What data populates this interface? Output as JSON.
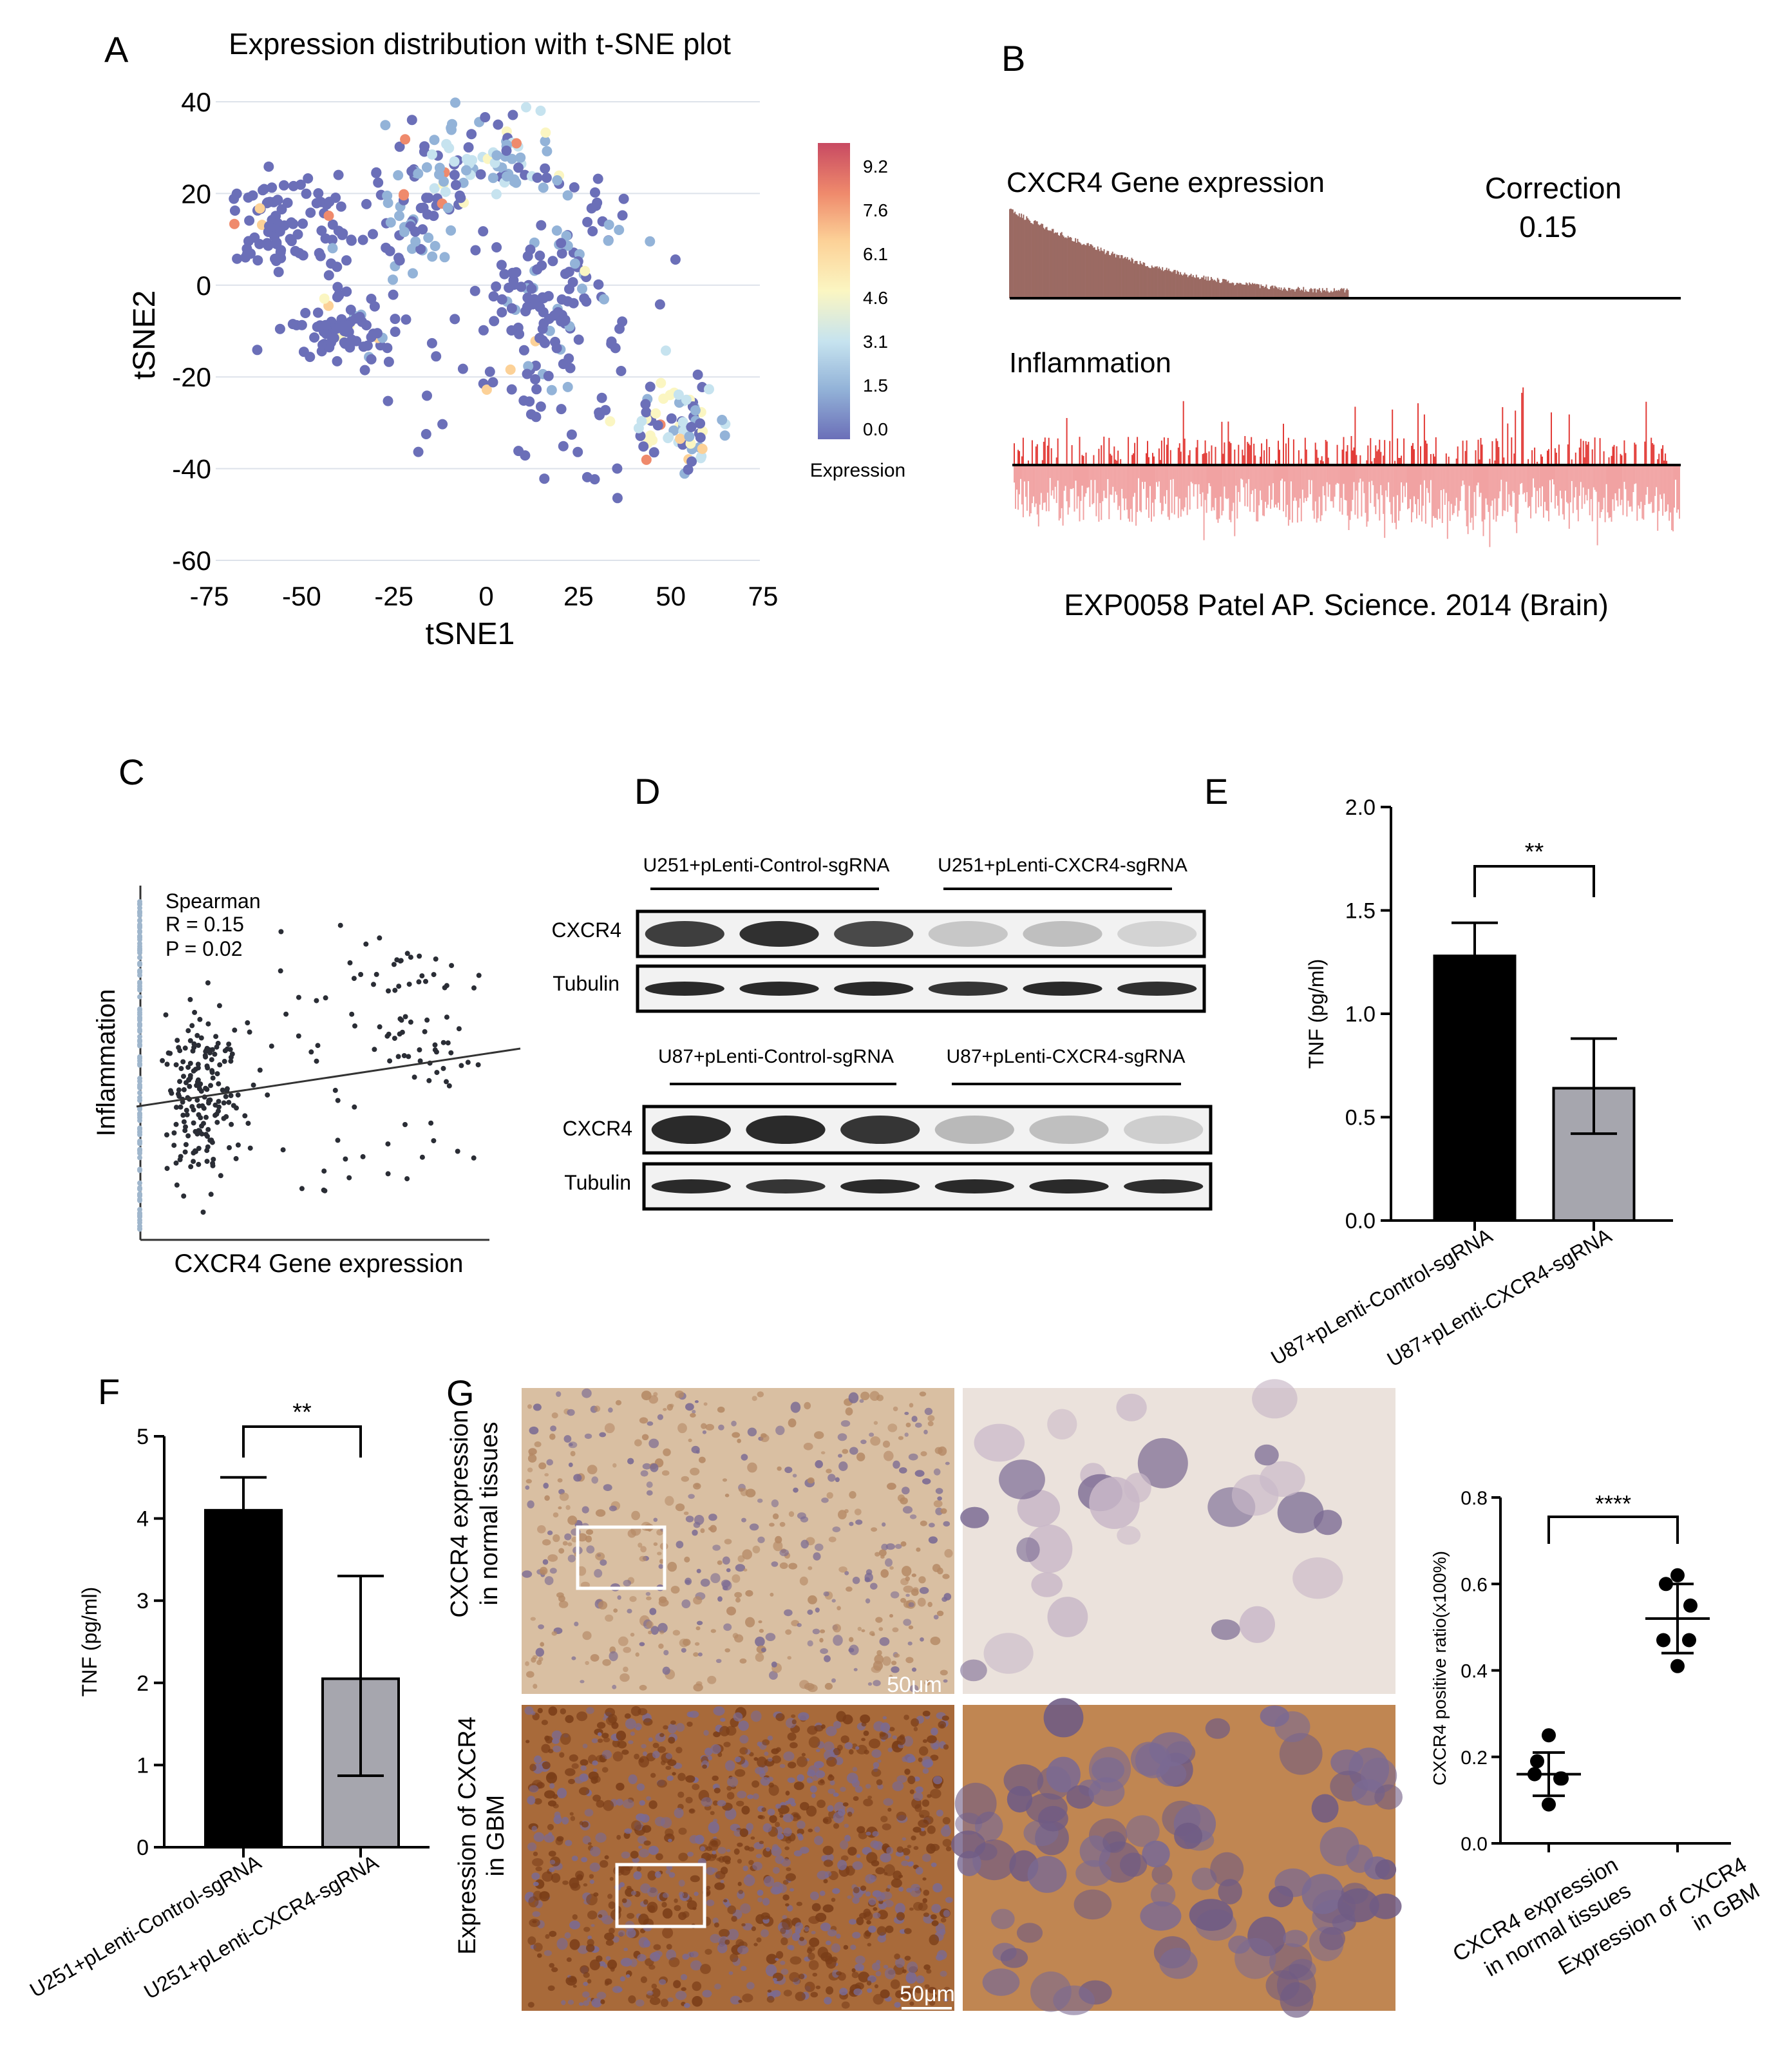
{
  "colors": {
    "low": "#5b63b3",
    "mid": "#a8cfe4",
    "high": "#c63a56",
    "scale": [
      "#6b6fb8",
      "#93b3d8",
      "#c6e3ef",
      "#fbf6c2",
      "#fcd197",
      "#ef8a6c",
      "#c84a62"
    ]
  },
  "panels": {
    "A": {
      "letter": "A",
      "title": "Expression distribution with t-SNE plot",
      "xlabel": "tSNE1",
      "ylabel": "tSNE2",
      "colorbar_title": "Expression",
      "colorbar_ticks": [
        "9.2",
        "7.6",
        "6.1",
        "4.6",
        "3.1",
        "1.5",
        "0.0"
      ]
    },
    "B": {
      "letter": "B",
      "top_label": "CXCR4 Gene expression",
      "corr_label": "Correction",
      "corr_value": "0.15",
      "bottom_label": "Inflammation",
      "caption": "EXP0058 Patel AP. Science. 2014 (Brain)"
    },
    "C": {
      "letter": "C",
      "xlabel": "CXCR4 Gene expression",
      "ylabel": "Inflammation",
      "stat_lines": [
        "Spearman",
        "R = 0.15",
        "P = 0.02"
      ]
    },
    "D": {
      "letter": "D",
      "top_groups": [
        "U251+pLenti-Control-sgRNA",
        "U251+pLenti-CXCR4-sgRNA"
      ],
      "bottom_groups": [
        "U87+pLenti-Control-sgRNA",
        "U87+pLenti-CXCR4-sgRNA"
      ],
      "row_labels_top": [
        "CXCR4",
        "Tubulin"
      ],
      "row_labels_bottom": [
        "CXCR4",
        "Tubulin"
      ]
    },
    "E": {
      "letter": "E",
      "ylabel": "TNF (pg/ml)",
      "sig": "**"
    },
    "F": {
      "letter": "F",
      "ylabel": "TNF (pg/ml)",
      "sig": "**"
    },
    "G": {
      "letter": "G",
      "row1_label": [
        "CXCR4 expression",
        "in normal tissues"
      ],
      "row2_label": [
        "Expression of CXCR4",
        "in GBM"
      ],
      "scale_bar": "50μm",
      "ylabel": "CXCR4 positive ratio(x100%)",
      "sig": "****",
      "xcats": [
        [
          "CXCR4 expression",
          "in normal tissues"
        ],
        [
          "Expression of CXCR4",
          "in GBM"
        ]
      ]
    }
  },
  "chart_data": [
    {
      "panel": "A",
      "type": "scatter",
      "title": "Expression distribution with t-SNE plot",
      "xlabel": "tSNE1",
      "ylabel": "tSNE2",
      "xlim": [
        -75,
        75
      ],
      "ylim": [
        -60,
        40
      ],
      "xticks": [
        "-75",
        "-50",
        "-25",
        "0",
        "25",
        "50",
        "75"
      ],
      "yticks": [
        "40",
        "20",
        "0",
        "-20",
        "-40",
        "-60"
      ],
      "grid": true,
      "clusters": [
        {
          "center": [
            -58,
            12
          ],
          "spread": [
            6,
            5
          ],
          "n": 70,
          "expr": 0.2
        },
        {
          "center": [
            -42,
            12
          ],
          "spread": [
            4,
            6
          ],
          "n": 25,
          "expr": 0.3
        },
        {
          "center": [
            -38,
            -10
          ],
          "spread": [
            8,
            4
          ],
          "n": 75,
          "expr": 0.3
        },
        {
          "center": [
            -22,
            15
          ],
          "spread": [
            5,
            9
          ],
          "n": 60,
          "expr": 0.8
        },
        {
          "center": [
            -8,
            25
          ],
          "spread": [
            6,
            6
          ],
          "n": 45,
          "expr": 1.5
        },
        {
          "center": [
            8,
            27
          ],
          "spread": [
            6,
            5
          ],
          "n": 50,
          "expr": 1.6
        },
        {
          "center": [
            12,
            -8
          ],
          "spread": [
            8,
            10
          ],
          "n": 95,
          "expr": 0.4
        },
        {
          "center": [
            30,
            8
          ],
          "spread": [
            8,
            8
          ],
          "n": 40,
          "expr": 0.6
        },
        {
          "center": [
            52,
            -30
          ],
          "spread": [
            6,
            5
          ],
          "n": 70,
          "expr": 2.5
        },
        {
          "center": [
            15,
            -28
          ],
          "spread": [
            20,
            10
          ],
          "n": 40,
          "expr": 0.2
        }
      ]
    },
    {
      "panel": "B",
      "type": "bar",
      "series": [
        {
          "name": "CXCR4 Gene expression",
          "profile": "decreasing",
          "nonzero_fraction": 0.5
        },
        {
          "name": "Inflammation",
          "profile": "signed noise"
        }
      ]
    },
    {
      "panel": "C",
      "type": "scatter",
      "xlabel": "CXCR4 Gene expression",
      "ylabel": "Inflammation",
      "spearman_r": 0.15,
      "p": 0.02,
      "fit_line": {
        "x": [
          0,
          1
        ],
        "y": [
          0.44,
          0.63
        ]
      }
    },
    {
      "panel": "E",
      "type": "bar",
      "categories": [
        "U87+pLenti-Control-sgRNA",
        "U87+pLenti-CXCR4-sgRNA"
      ],
      "values": [
        1.28,
        0.64
      ],
      "errors_low": [
        1.28,
        0.42
      ],
      "errors_high": [
        1.44,
        0.88
      ],
      "colors": [
        "#000000",
        "#a6a6ae"
      ],
      "ylabel": "TNF (pg/ml)",
      "ylim": [
        0,
        2.0
      ],
      "yticks": [
        "0.0",
        "0.5",
        "1.0",
        "1.5",
        "2.0"
      ],
      "significance": "**"
    },
    {
      "panel": "F",
      "type": "bar",
      "categories": [
        "U251+pLenti-Control-sgRNA",
        "U251+pLenti-CXCR4-sgRNA"
      ],
      "values": [
        4.1,
        2.05
      ],
      "errors_low": [
        4.1,
        0.87
      ],
      "errors_high": [
        4.5,
        3.3
      ],
      "colors": [
        "#000000",
        "#a6a6ae"
      ],
      "ylabel": "TNF (pg/ml)",
      "ylim": [
        0,
        5
      ],
      "yticks": [
        "0",
        "1",
        "2",
        "3",
        "4",
        "5"
      ],
      "significance": "**"
    },
    {
      "panel": "G",
      "type": "scatter",
      "categories": [
        "CXCR4 expression in normal tissues",
        "Expression of CXCR4 in GBM"
      ],
      "points": [
        [
          0.25,
          0.19,
          0.15,
          0.16,
          0.15,
          0.09
        ],
        [
          0.62,
          0.6,
          0.55,
          0.47,
          0.47,
          0.41
        ]
      ],
      "mean": [
        0.16,
        0.52
      ],
      "sd": [
        0.05,
        0.08
      ],
      "ylabel": "CXCR4 positive ratio(x100%)",
      "ylim": [
        0,
        0.8
      ],
      "yticks": [
        "0.0",
        "0.2",
        "0.4",
        "0.6",
        "0.8"
      ],
      "significance": "****"
    }
  ]
}
